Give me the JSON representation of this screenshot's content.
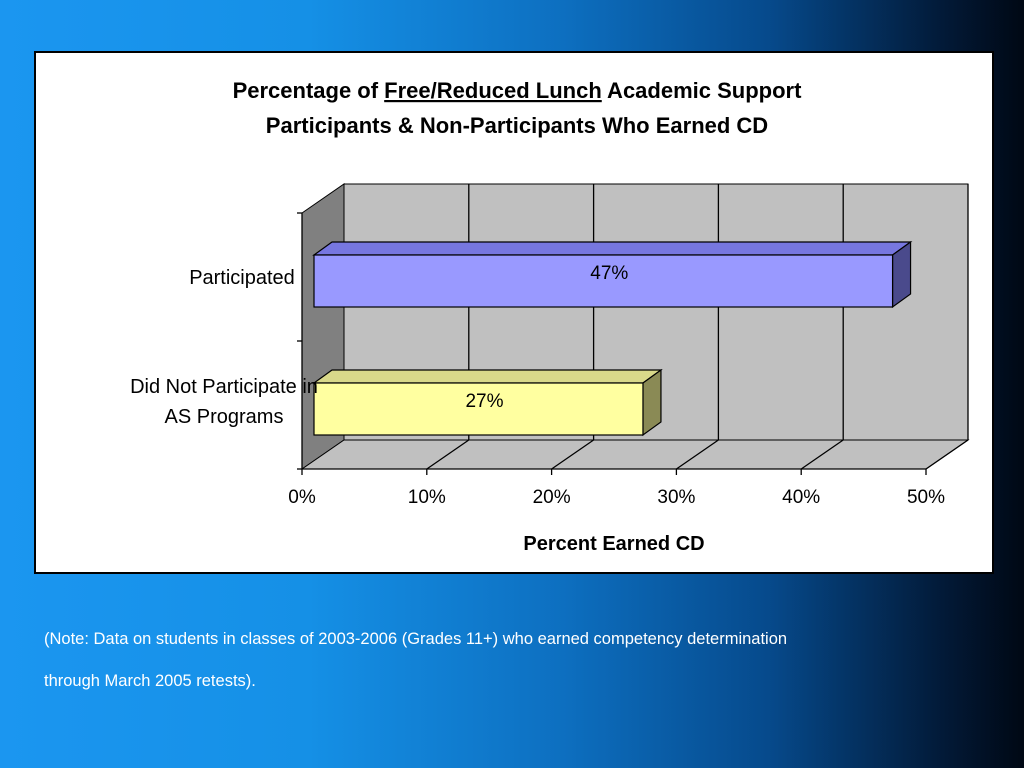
{
  "chart_data": {
    "type": "bar",
    "orientation": "horizontal",
    "style": "3d",
    "title": {
      "line1_before": "Percentage of ",
      "line1_underlined": "Free/Reduced Lunch",
      "line1_after": " Academic Support",
      "line2": "Participants & Non-Participants Who Earned CD"
    },
    "categories": [
      "Participated",
      [
        "Did Not Participate in",
        "AS Programs"
      ]
    ],
    "values": [
      47,
      27
    ],
    "data_labels": [
      "47%",
      "27%"
    ],
    "colors": [
      {
        "front": "#9999ff",
        "top": "#7777e0",
        "side": "#4a4a8c"
      },
      {
        "front": "#ffffa0",
        "top": "#d9d98a",
        "side": "#8a8a55"
      }
    ],
    "xlabel": "Percent Earned CD",
    "ylabel": "",
    "xlim": [
      0,
      50
    ],
    "x_ticks": [
      0,
      10,
      20,
      30,
      40,
      50
    ],
    "x_tick_labels": [
      "0%",
      "10%",
      "20%",
      "30%",
      "40%",
      "50%"
    ],
    "grid": "vertical",
    "wall_color": "#c0c0c0",
    "side_wall_color": "#808080"
  },
  "note": {
    "line1": "(Note: Data on students in classes of 2003-2006 (Grades 11+) who earned competency determination",
    "line2": "through March 2005 retests)."
  }
}
